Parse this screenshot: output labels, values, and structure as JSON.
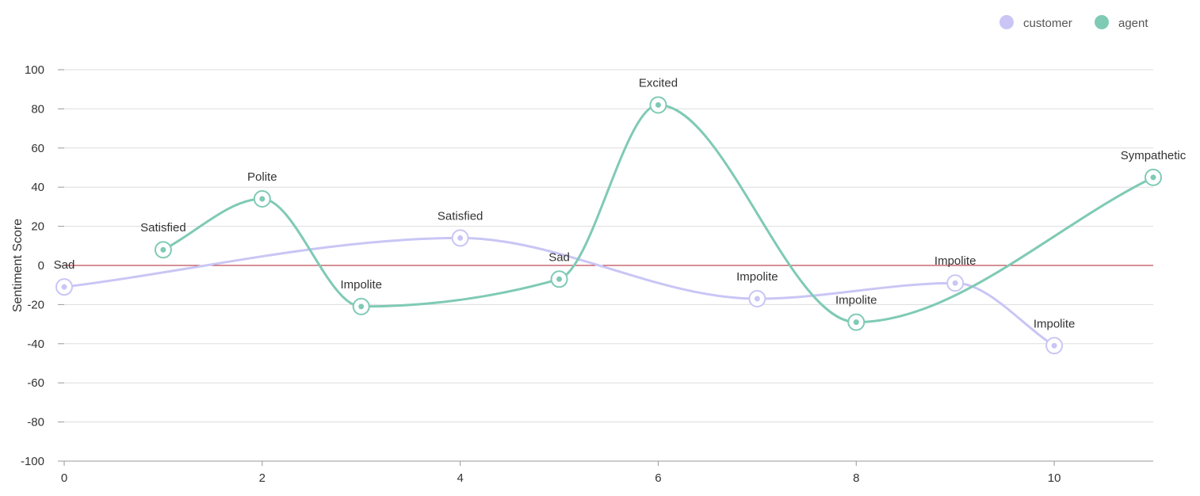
{
  "chart_data": {
    "type": "line",
    "ylabel": "Sentiment Score",
    "xlabel": "",
    "ylim": [
      -100,
      100
    ],
    "xlim": [
      0,
      11
    ],
    "yticks": [
      100,
      80,
      60,
      40,
      20,
      0,
      -20,
      -40,
      -60,
      -80,
      -100
    ],
    "xticks": [
      0,
      2,
      4,
      6,
      8,
      10
    ],
    "grid": "horizontal",
    "baseline": 0,
    "legend_position": "top-right",
    "colors": {
      "customer": "#c9c6f5",
      "agent": "#7fcab5",
      "baseline": "#b0202a",
      "grid": "#dddddd",
      "axis": "#999999"
    },
    "series": [
      {
        "name": "customer",
        "points": [
          {
            "x": 0,
            "y": -11,
            "label": "Sad"
          },
          {
            "x": 4,
            "y": 14,
            "label": "Satisfied"
          },
          {
            "x": 7,
            "y": -17,
            "label": "Impolite"
          },
          {
            "x": 9,
            "y": -9,
            "label": "Impolite"
          },
          {
            "x": 10,
            "y": -41,
            "label": "Impolite"
          }
        ]
      },
      {
        "name": "agent",
        "points": [
          {
            "x": 1,
            "y": 8,
            "label": "Satisfied"
          },
          {
            "x": 2,
            "y": 34,
            "label": "Polite"
          },
          {
            "x": 3,
            "y": -21,
            "label": "Impolite"
          },
          {
            "x": 5,
            "y": -7,
            "label": "Sad"
          },
          {
            "x": 6,
            "y": 82,
            "label": "Excited"
          },
          {
            "x": 8,
            "y": -29,
            "label": "Impolite"
          },
          {
            "x": 11,
            "y": 45,
            "label": "Sympathetic"
          }
        ]
      }
    ]
  }
}
